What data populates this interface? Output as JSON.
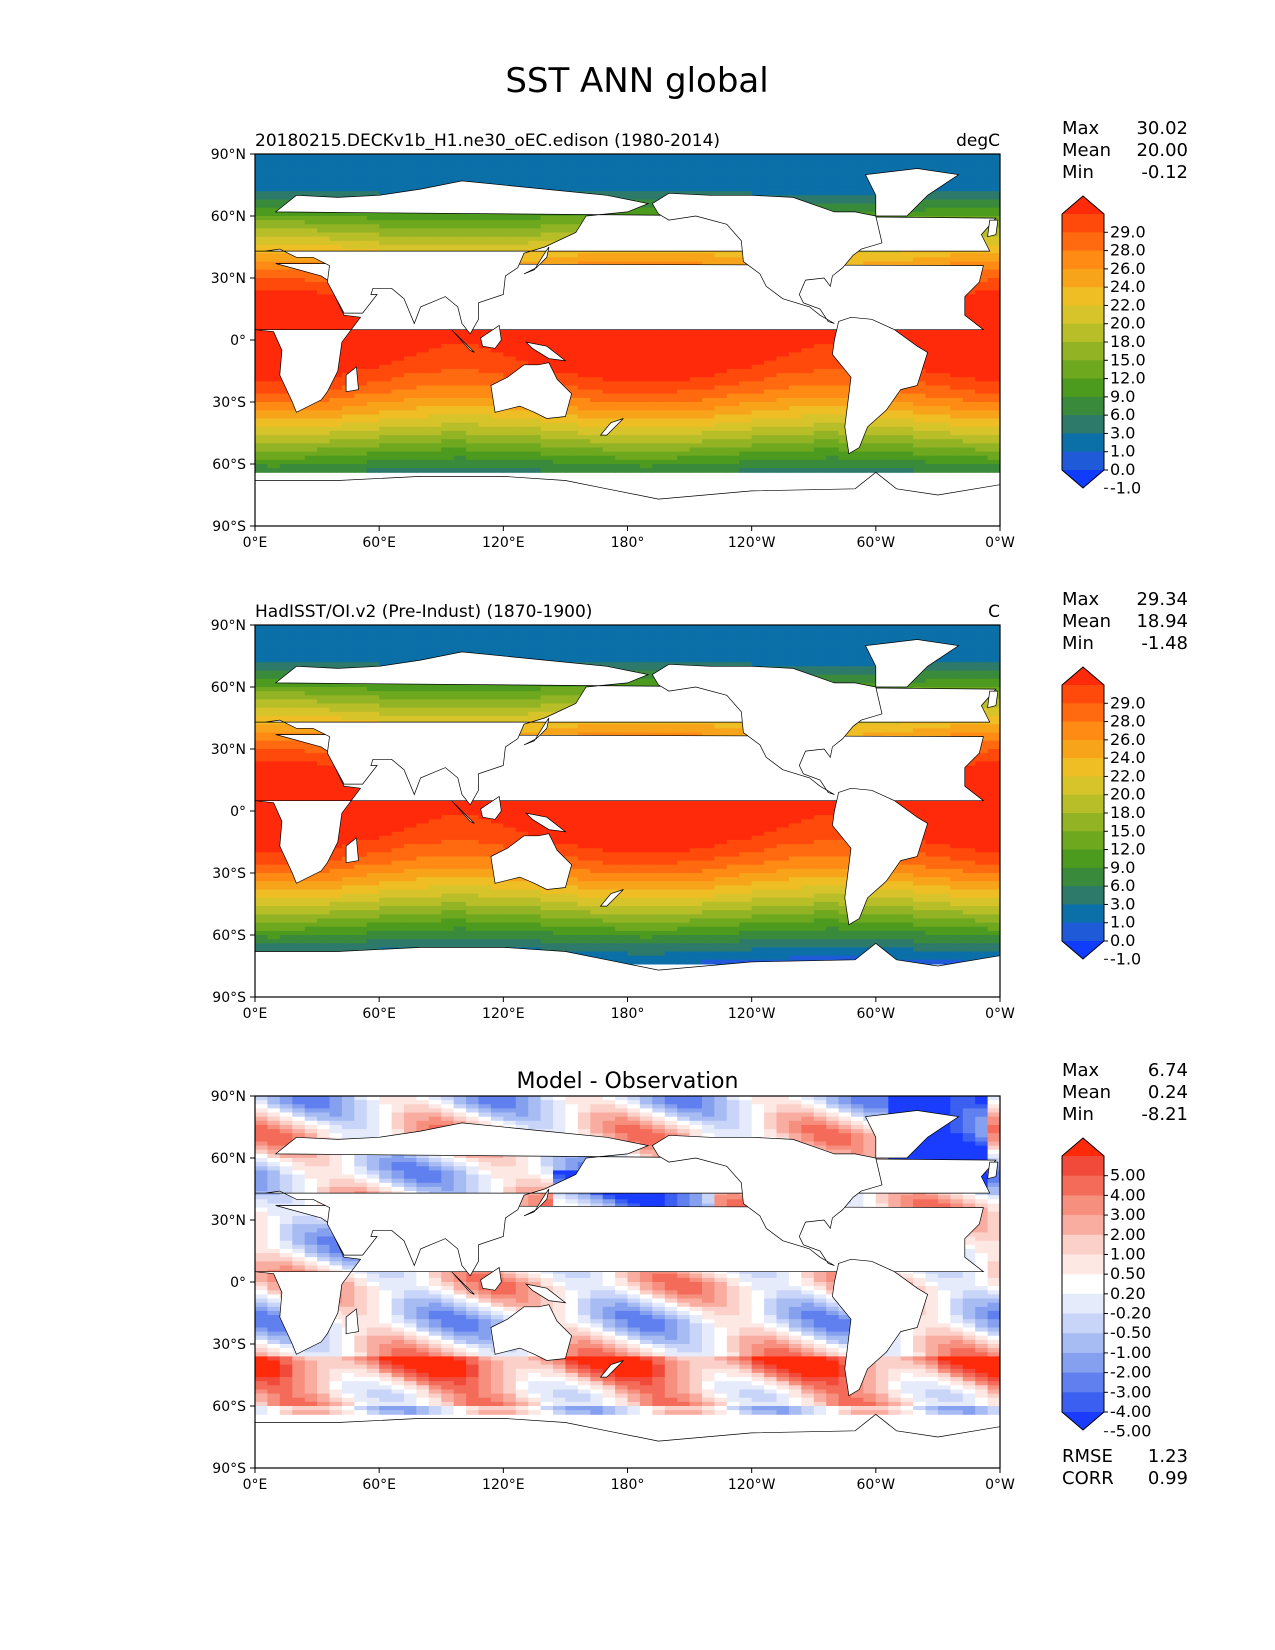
{
  "title": "SST ANN global",
  "lat_ticks": [
    "90°N",
    "60°N",
    "30°N",
    "0°",
    "30°S",
    "60°S",
    "90°S"
  ],
  "lon_ticks": [
    "0°E",
    "60°E",
    "120°E",
    "180°",
    "120°W",
    "60°W",
    "0°W"
  ],
  "stat_labels": [
    "Max",
    "Mean",
    "Min"
  ],
  "chart_data": [
    {
      "type": "heatmap",
      "title_left": "20180215.DECKv1b_H1.ne30_oEC.edison (1980-2014)",
      "title_right": "degC",
      "stats": {
        "max": "30.02",
        "mean": "20.00",
        "min": "-0.12"
      },
      "colorbar_levels": [
        "29.0",
        "28.0",
        "26.0",
        "24.0",
        "22.0",
        "20.0",
        "18.0",
        "15.0",
        "12.0",
        "9.0",
        "6.0",
        "3.0",
        "1.0",
        "0.0",
        "-1.0"
      ],
      "colorbar_colors": [
        "#ff2a0a",
        "#ff4a0c",
        "#ff6a10",
        "#ff8a14",
        "#f8a41a",
        "#efbd24",
        "#d6c42a",
        "#b8be28",
        "#92b424",
        "#6ea81e",
        "#4c9a1e",
        "#3a8a3c",
        "#2e7a6a",
        "#0b6fa8",
        "#1f5bd8",
        "#0f3cff"
      ],
      "lat_range": [
        -90,
        90
      ],
      "lon_range": [
        0,
        360
      ]
    },
    {
      "type": "heatmap",
      "title_left": "HadISST/OI.v2 (Pre-Indust) (1870-1900)",
      "title_right": "C",
      "stats": {
        "max": "29.34",
        "mean": "18.94",
        "min": "-1.48"
      },
      "colorbar_levels": [
        "29.0",
        "28.0",
        "26.0",
        "24.0",
        "22.0",
        "20.0",
        "18.0",
        "15.0",
        "12.0",
        "9.0",
        "6.0",
        "3.0",
        "1.0",
        "0.0",
        "-1.0"
      ],
      "colorbar_colors": [
        "#ff2a0a",
        "#ff4a0c",
        "#ff6a10",
        "#ff8a14",
        "#f8a41a",
        "#efbd24",
        "#d6c42a",
        "#b8be28",
        "#92b424",
        "#6ea81e",
        "#4c9a1e",
        "#3a8a3c",
        "#2e7a6a",
        "#0b6fa8",
        "#1f5bd8",
        "#0f3cff"
      ],
      "lat_range": [
        -90,
        90
      ],
      "lon_range": [
        0,
        360
      ]
    },
    {
      "type": "heatmap",
      "title_center": "Model - Observation",
      "stats": {
        "max": "6.74",
        "mean": "0.24",
        "min": "-8.21"
      },
      "colorbar_levels": [
        "5.00",
        "4.00",
        "3.00",
        "2.00",
        "1.00",
        "0.50",
        "0.20",
        "-0.20",
        "-0.50",
        "-1.00",
        "-2.00",
        "-3.00",
        "-4.00",
        "-5.00"
      ],
      "colorbar_colors": [
        "#ff2a0a",
        "#f24a3a",
        "#f56b5a",
        "#f78f7e",
        "#f9ada0",
        "#fbd0c8",
        "#fde8e4",
        "#ffffff",
        "#e6ebfb",
        "#c8d4f8",
        "#a8bcf4",
        "#86a0f0",
        "#5f80ee",
        "#3b5ff0",
        "#1a3cff"
      ],
      "lat_range": [
        -90,
        90
      ],
      "lon_range": [
        0,
        360
      ],
      "rmse_label": "RMSE",
      "rmse": "1.23",
      "corr_label": "CORR",
      "corr": "0.99"
    }
  ]
}
